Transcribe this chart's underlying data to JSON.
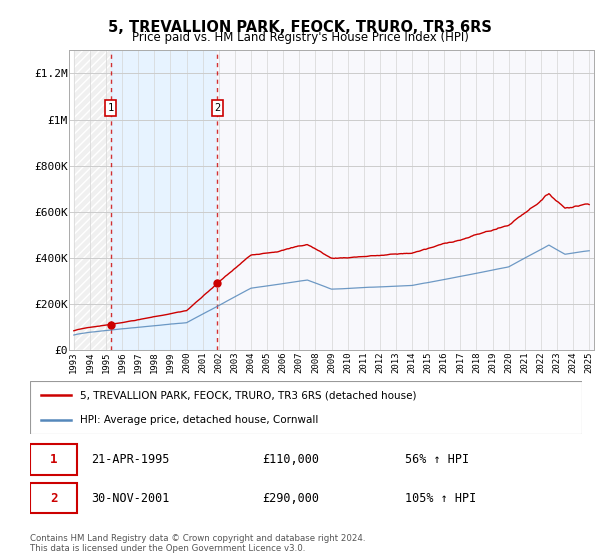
{
  "title": "5, TREVALLION PARK, FEOCK, TRURO, TR3 6RS",
  "subtitle": "Price paid vs. HM Land Registry's House Price Index (HPI)",
  "ylim": [
    0,
    1300000
  ],
  "yticks": [
    0,
    200000,
    400000,
    600000,
    800000,
    1000000,
    1200000
  ],
  "ytick_labels": [
    "£0",
    "£200K",
    "£400K",
    "£600K",
    "£800K",
    "£1M",
    "£1.2M"
  ],
  "x_start_year": 1993,
  "x_end_year": 2025,
  "sale1_year": 1995.29,
  "sale1_price": 110000,
  "sale2_year": 2001.92,
  "sale2_price": 290000,
  "red_line_color": "#cc0000",
  "blue_line_color": "#5588bb",
  "grid_color": "#cccccc",
  "legend_label_red": "5, TREVALLION PARK, FEOCK, TRURO, TR3 6RS (detached house)",
  "legend_label_blue": "HPI: Average price, detached house, Cornwall",
  "sale1_date": "21-APR-1995",
  "sale1_hpi_text": "56% ↑ HPI",
  "sale2_date": "30-NOV-2001",
  "sale2_hpi_text": "105% ↑ HPI",
  "footer_text": "Contains HM Land Registry data © Crown copyright and database right 2024.\nThis data is licensed under the Open Government Licence v3.0."
}
